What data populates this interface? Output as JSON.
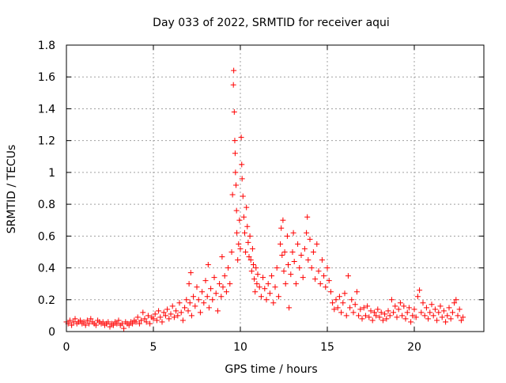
{
  "chart_data": {
    "type": "scatter",
    "title": "Day 033 of 2022, SRMTID for receiver aqui",
    "xlabel": "GPS time / hours",
    "ylabel": "SRMTID / TECUs",
    "xlim": [
      0,
      24
    ],
    "ylim": [
      0,
      1.8
    ],
    "x_ticks": [
      0,
      5,
      10,
      15,
      20
    ],
    "y_ticks": [
      0,
      0.2,
      0.4,
      0.6,
      0.8,
      1,
      1.2,
      1.4,
      1.6,
      1.8
    ],
    "x_tick_labels": [
      "0",
      "5",
      "10",
      "15",
      "20"
    ],
    "y_tick_labels": [
      "0",
      "0.2",
      "0.4",
      "0.6",
      "0.8",
      "1",
      "1.2",
      "1.4",
      "1.6",
      "1.8"
    ],
    "grid": true,
    "marker": "plus",
    "color": "#ff0000",
    "series": [
      {
        "name": "SRMTID",
        "points": [
          [
            0.0,
            0.06
          ],
          [
            0.1,
            0.05
          ],
          [
            0.2,
            0.07
          ],
          [
            0.3,
            0.04
          ],
          [
            0.4,
            0.06
          ],
          [
            0.5,
            0.08
          ],
          [
            0.6,
            0.05
          ],
          [
            0.7,
            0.06
          ],
          [
            0.8,
            0.07
          ],
          [
            0.9,
            0.05
          ],
          [
            1.0,
            0.06
          ],
          [
            1.1,
            0.04
          ],
          [
            1.2,
            0.07
          ],
          [
            1.3,
            0.05
          ],
          [
            1.4,
            0.08
          ],
          [
            1.5,
            0.06
          ],
          [
            1.6,
            0.05
          ],
          [
            1.7,
            0.04
          ],
          [
            1.8,
            0.07
          ],
          [
            1.9,
            0.06
          ],
          [
            2.0,
            0.05
          ],
          [
            2.1,
            0.06
          ],
          [
            2.2,
            0.04
          ],
          [
            2.3,
            0.05
          ],
          [
            2.4,
            0.06
          ],
          [
            2.5,
            0.03
          ],
          [
            2.6,
            0.05
          ],
          [
            2.7,
            0.04
          ],
          [
            2.8,
            0.06
          ],
          [
            2.9,
            0.05
          ],
          [
            3.0,
            0.07
          ],
          [
            3.1,
            0.04
          ],
          [
            3.2,
            0.05
          ],
          [
            3.3,
            0.02
          ],
          [
            3.4,
            0.06
          ],
          [
            3.5,
            0.05
          ],
          [
            3.6,
            0.04
          ],
          [
            3.7,
            0.06
          ],
          [
            3.8,
            0.05
          ],
          [
            3.9,
            0.07
          ],
          [
            4.0,
            0.06
          ],
          [
            4.1,
            0.09
          ],
          [
            4.2,
            0.05
          ],
          [
            4.3,
            0.07
          ],
          [
            4.4,
            0.12
          ],
          [
            4.5,
            0.08
          ],
          [
            4.6,
            0.06
          ],
          [
            4.7,
            0.1
          ],
          [
            4.8,
            0.05
          ],
          [
            4.9,
            0.09
          ],
          [
            5.0,
            0.08
          ],
          [
            5.1,
            0.11
          ],
          [
            5.2,
            0.07
          ],
          [
            5.3,
            0.13
          ],
          [
            5.4,
            0.09
          ],
          [
            5.5,
            0.06
          ],
          [
            5.6,
            0.12
          ],
          [
            5.7,
            0.1
          ],
          [
            5.8,
            0.14
          ],
          [
            5.9,
            0.08
          ],
          [
            6.0,
            0.11
          ],
          [
            6.1,
            0.16
          ],
          [
            6.2,
            0.09
          ],
          [
            6.3,
            0.13
          ],
          [
            6.4,
            0.1
          ],
          [
            6.5,
            0.18
          ],
          [
            6.6,
            0.12
          ],
          [
            6.7,
            0.07
          ],
          [
            6.8,
            0.15
          ],
          [
            6.9,
            0.2
          ],
          [
            7.0,
            0.13
          ],
          [
            7.05,
            0.3
          ],
          [
            7.1,
            0.18
          ],
          [
            7.15,
            0.37
          ],
          [
            7.2,
            0.1
          ],
          [
            7.3,
            0.22
          ],
          [
            7.4,
            0.16
          ],
          [
            7.5,
            0.28
          ],
          [
            7.6,
            0.2
          ],
          [
            7.7,
            0.12
          ],
          [
            7.8,
            0.25
          ],
          [
            7.9,
            0.18
          ],
          [
            8.0,
            0.32
          ],
          [
            8.1,
            0.22
          ],
          [
            8.15,
            0.42
          ],
          [
            8.2,
            0.15
          ],
          [
            8.3,
            0.27
          ],
          [
            8.4,
            0.2
          ],
          [
            8.5,
            0.34
          ],
          [
            8.6,
            0.24
          ],
          [
            8.7,
            0.13
          ],
          [
            8.8,
            0.3
          ],
          [
            8.9,
            0.22
          ],
          [
            8.95,
            0.47
          ],
          [
            9.0,
            0.28
          ],
          [
            9.1,
            0.35
          ],
          [
            9.2,
            0.25
          ],
          [
            9.3,
            0.4
          ],
          [
            9.4,
            0.3
          ],
          [
            9.5,
            0.5
          ],
          [
            9.55,
            0.86
          ],
          [
            9.6,
            1.55
          ],
          [
            9.62,
            1.64
          ],
          [
            9.65,
            1.38
          ],
          [
            9.68,
            1.2
          ],
          [
            9.7,
            1.12
          ],
          [
            9.72,
            1.0
          ],
          [
            9.75,
            0.92
          ],
          [
            9.78,
            0.76
          ],
          [
            9.8,
            0.62
          ],
          [
            9.85,
            0.45
          ],
          [
            9.9,
            0.55
          ],
          [
            9.95,
            0.7
          ],
          [
            10.0,
            0.52
          ],
          [
            10.05,
            1.22
          ],
          [
            10.08,
            1.05
          ],
          [
            10.1,
            0.96
          ],
          [
            10.15,
            0.85
          ],
          [
            10.2,
            0.72
          ],
          [
            10.25,
            0.62
          ],
          [
            10.3,
            0.5
          ],
          [
            10.35,
            0.78
          ],
          [
            10.4,
            0.66
          ],
          [
            10.45,
            0.56
          ],
          [
            10.5,
            0.47
          ],
          [
            10.55,
            0.6
          ],
          [
            10.6,
            0.45
          ],
          [
            10.65,
            0.38
          ],
          [
            10.7,
            0.52
          ],
          [
            10.75,
            0.42
          ],
          [
            10.8,
            0.33
          ],
          [
            10.85,
            0.25
          ],
          [
            10.9,
            0.4
          ],
          [
            10.95,
            0.3
          ],
          [
            11.0,
            0.36
          ],
          [
            11.1,
            0.28
          ],
          [
            11.2,
            0.22
          ],
          [
            11.3,
            0.34
          ],
          [
            11.4,
            0.27
          ],
          [
            11.5,
            0.2
          ],
          [
            11.6,
            0.3
          ],
          [
            11.7,
            0.24
          ],
          [
            11.8,
            0.35
          ],
          [
            11.9,
            0.18
          ],
          [
            12.0,
            0.28
          ],
          [
            12.1,
            0.4
          ],
          [
            12.2,
            0.22
          ],
          [
            12.3,
            0.55
          ],
          [
            12.35,
            0.65
          ],
          [
            12.4,
            0.48
          ],
          [
            12.45,
            0.7
          ],
          [
            12.5,
            0.38
          ],
          [
            12.55,
            0.5
          ],
          [
            12.6,
            0.3
          ],
          [
            12.7,
            0.6
          ],
          [
            12.75,
            0.42
          ],
          [
            12.8,
            0.15
          ],
          [
            12.9,
            0.36
          ],
          [
            13.0,
            0.5
          ],
          [
            13.05,
            0.62
          ],
          [
            13.1,
            0.44
          ],
          [
            13.2,
            0.3
          ],
          [
            13.3,
            0.55
          ],
          [
            13.4,
            0.4
          ],
          [
            13.5,
            0.48
          ],
          [
            13.6,
            0.34
          ],
          [
            13.7,
            0.52
          ],
          [
            13.8,
            0.62
          ],
          [
            13.85,
            0.72
          ],
          [
            13.9,
            0.45
          ],
          [
            14.0,
            0.58
          ],
          [
            14.1,
            0.4
          ],
          [
            14.2,
            0.5
          ],
          [
            14.3,
            0.33
          ],
          [
            14.4,
            0.55
          ],
          [
            14.5,
            0.38
          ],
          [
            14.6,
            0.3
          ],
          [
            14.7,
            0.45
          ],
          [
            14.8,
            0.35
          ],
          [
            14.9,
            0.28
          ],
          [
            15.0,
            0.4
          ],
          [
            15.1,
            0.32
          ],
          [
            15.2,
            0.25
          ],
          [
            15.3,
            0.18
          ],
          [
            15.4,
            0.14
          ],
          [
            15.5,
            0.2
          ],
          [
            15.6,
            0.15
          ],
          [
            15.7,
            0.22
          ],
          [
            15.8,
            0.12
          ],
          [
            15.9,
            0.18
          ],
          [
            16.0,
            0.24
          ],
          [
            16.1,
            0.1
          ],
          [
            16.2,
            0.35
          ],
          [
            16.3,
            0.15
          ],
          [
            16.4,
            0.2
          ],
          [
            16.5,
            0.12
          ],
          [
            16.6,
            0.17
          ],
          [
            16.7,
            0.25
          ],
          [
            16.8,
            0.1
          ],
          [
            16.9,
            0.14
          ],
          [
            17.0,
            0.08
          ],
          [
            17.1,
            0.15
          ],
          [
            17.2,
            0.1
          ],
          [
            17.3,
            0.16
          ],
          [
            17.4,
            0.09
          ],
          [
            17.5,
            0.13
          ],
          [
            17.6,
            0.07
          ],
          [
            17.7,
            0.12
          ],
          [
            17.8,
            0.1
          ],
          [
            17.9,
            0.14
          ],
          [
            18.0,
            0.09
          ],
          [
            18.1,
            0.12
          ],
          [
            18.2,
            0.07
          ],
          [
            18.3,
            0.11
          ],
          [
            18.4,
            0.08
          ],
          [
            18.5,
            0.13
          ],
          [
            18.6,
            0.1
          ],
          [
            18.7,
            0.2
          ],
          [
            18.8,
            0.12
          ],
          [
            18.9,
            0.16
          ],
          [
            19.0,
            0.09
          ],
          [
            19.1,
            0.14
          ],
          [
            19.2,
            0.18
          ],
          [
            19.3,
            0.1
          ],
          [
            19.4,
            0.16
          ],
          [
            19.5,
            0.08
          ],
          [
            19.6,
            0.12
          ],
          [
            19.7,
            0.15
          ],
          [
            19.8,
            0.06
          ],
          [
            19.9,
            0.1
          ],
          [
            20.0,
            0.14
          ],
          [
            20.1,
            0.09
          ],
          [
            20.2,
            0.22
          ],
          [
            20.3,
            0.26
          ],
          [
            20.4,
            0.12
          ],
          [
            20.5,
            0.18
          ],
          [
            20.6,
            0.1
          ],
          [
            20.7,
            0.15
          ],
          [
            20.8,
            0.08
          ],
          [
            20.9,
            0.12
          ],
          [
            21.0,
            0.17
          ],
          [
            21.1,
            0.1
          ],
          [
            21.2,
            0.14
          ],
          [
            21.3,
            0.07
          ],
          [
            21.4,
            0.12
          ],
          [
            21.5,
            0.16
          ],
          [
            21.6,
            0.09
          ],
          [
            21.7,
            0.13
          ],
          [
            21.8,
            0.06
          ],
          [
            21.9,
            0.1
          ],
          [
            22.0,
            0.15
          ],
          [
            22.1,
            0.08
          ],
          [
            22.2,
            0.12
          ],
          [
            22.3,
            0.18
          ],
          [
            22.4,
            0.2
          ],
          [
            22.5,
            0.1
          ],
          [
            22.6,
            0.14
          ],
          [
            22.7,
            0.07
          ],
          [
            22.8,
            0.09
          ]
        ]
      }
    ]
  }
}
